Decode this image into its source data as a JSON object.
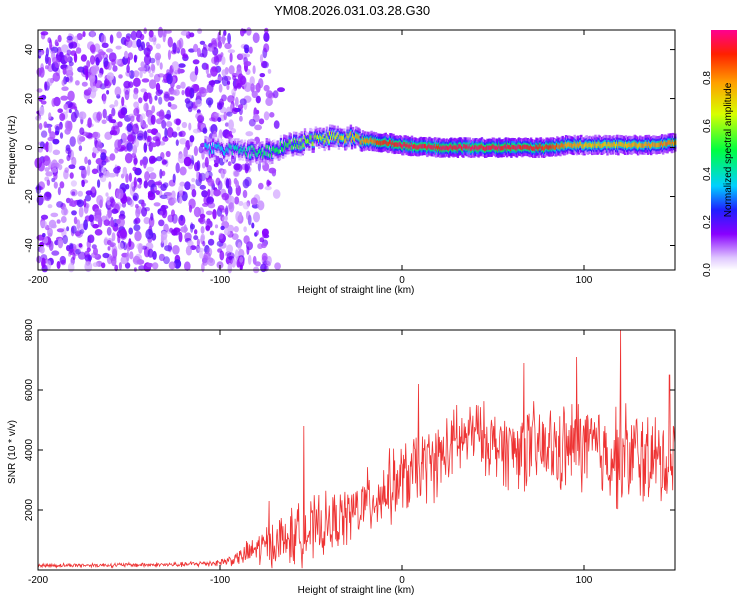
{
  "title": "YM08.2026.031.03.28.G30",
  "chart_data": [
    {
      "type": "heatmap",
      "name": "spectrogram",
      "xlabel": "Height of straight line (km)",
      "ylabel": "Frequency (Hz)",
      "xlim": [
        -200,
        150
      ],
      "ylim": [
        -50,
        48
      ],
      "xticks": [
        "-200",
        "-100",
        "0",
        "100"
      ],
      "xtick_values": [
        -200,
        -100,
        0,
        100
      ],
      "yticks": [
        "40",
        "20",
        "0",
        "-20",
        "-40"
      ],
      "ytick_values": [
        40,
        20,
        0,
        -20,
        -40
      ],
      "noise_region_km": [
        -200,
        -90
      ],
      "ridge": {
        "description_points_km": [
          -105,
          -90,
          -80,
          -70,
          -60,
          -50,
          -40,
          -30,
          -20,
          -10,
          0,
          20,
          40,
          60,
          80,
          90,
          100,
          120,
          140,
          150
        ],
        "frequency_hz": [
          0,
          -1,
          -2,
          -1,
          1,
          3,
          4,
          4,
          3,
          2,
          1,
          0,
          0,
          0,
          0,
          1,
          1,
          1,
          1,
          2
        ],
        "amplitude": [
          0.35,
          0.4,
          0.45,
          0.5,
          0.55,
          0.6,
          0.65,
          0.7,
          0.8,
          0.9,
          0.95,
          0.95,
          0.95,
          0.95,
          0.9,
          0.8,
          0.75,
          0.75,
          0.8,
          0.8
        ]
      },
      "colorbar": {
        "label": "Normalized spectral amplitude",
        "ticks": [
          "0.0",
          "0.2",
          "0.4",
          "0.6",
          "0.8"
        ],
        "tick_values": [
          0.0,
          0.2,
          0.4,
          0.6,
          0.8
        ],
        "range": [
          0,
          1
        ]
      }
    },
    {
      "type": "line",
      "name": "snr",
      "xlabel": "Height of straight line (km)",
      "ylabel": "SNR (10 * v/v)",
      "xlim": [
        -200,
        150
      ],
      "ylim": [
        0,
        8000
      ],
      "xticks": [
        "-200",
        "-100",
        "0",
        "100"
      ],
      "xtick_values": [
        -200,
        -100,
        0,
        100
      ],
      "yticks": [
        "8000",
        "6000",
        "4000",
        "2000"
      ],
      "ytick_values": [
        8000,
        6000,
        4000,
        2000
      ],
      "color": "#ee3333",
      "envelope": {
        "x_km": [
          -200,
          -120,
          -100,
          -90,
          -80,
          -70,
          -60,
          -50,
          -40,
          -30,
          -20,
          -10,
          0,
          10,
          20,
          30,
          40,
          50,
          60,
          70,
          80,
          90,
          100,
          110,
          120,
          130,
          140,
          150
        ],
        "mean": [
          150,
          180,
          250,
          400,
          700,
          900,
          1100,
          1300,
          1500,
          1800,
          2200,
          2600,
          3000,
          3400,
          3700,
          4200,
          4600,
          4200,
          4000,
          4100,
          4000,
          4000,
          4200,
          3900,
          3800,
          3800,
          3600,
          3600
        ],
        "spread": [
          80,
          100,
          150,
          300,
          700,
          1000,
          1200,
          1300,
          1200,
          1200,
          1300,
          1400,
          1500,
          1500,
          1500,
          1400,
          1300,
          1400,
          1600,
          1700,
          1700,
          1800,
          1900,
          1900,
          2100,
          2000,
          1800,
          1800
        ]
      },
      "peaks": [
        {
          "x": -73,
          "y": 2300
        },
        {
          "x": -54,
          "y": 4800
        },
        {
          "x": 9,
          "y": 6200
        },
        {
          "x": 30,
          "y": 5500
        },
        {
          "x": 67,
          "y": 6900
        },
        {
          "x": 96,
          "y": 7100
        },
        {
          "x": 120,
          "y": 8000
        },
        {
          "x": 147,
          "y": 6500
        }
      ]
    }
  ]
}
